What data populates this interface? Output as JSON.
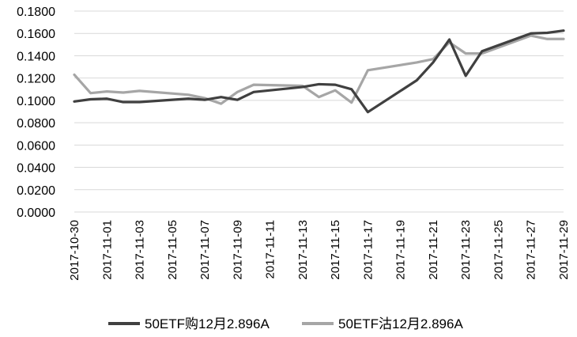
{
  "chart_data": {
    "type": "line",
    "title": "",
    "xlabel": "",
    "ylabel": "",
    "ylim": [
      0,
      0.18
    ],
    "y_ticks": [
      "0.0000",
      "0.0200",
      "0.0400",
      "0.0600",
      "0.0800",
      "0.1000",
      "0.1200",
      "0.1400",
      "0.1600",
      "0.1800"
    ],
    "x_tick_labels": [
      "2017-10-30",
      "2017-11-01",
      "2017-11-03",
      "2017-11-05",
      "2017-11-07",
      "2017-11-09",
      "2017-11-11",
      "2017-11-13",
      "2017-11-15",
      "2017-11-17",
      "2017-11-19",
      "2017-11-21",
      "2017-11-23",
      "2017-11-25",
      "2017-11-27",
      "2017-11-29"
    ],
    "x_range": [
      "2017-10-30",
      "2017-11-29"
    ],
    "grid": true,
    "legend_position": "bottom",
    "series": [
      {
        "name": "50ETF购12月2.896A",
        "color": "#404040",
        "points": [
          [
            "2017-10-30",
            0.099
          ],
          [
            "2017-10-31",
            0.101
          ],
          [
            "2017-11-01",
            0.1015
          ],
          [
            "2017-11-02",
            0.0985
          ],
          [
            "2017-11-03",
            0.0985
          ],
          [
            "2017-11-06",
            0.1015
          ],
          [
            "2017-11-07",
            0.1005
          ],
          [
            "2017-11-08",
            0.103
          ],
          [
            "2017-11-09",
            0.1005
          ],
          [
            "2017-11-10",
            0.1075
          ],
          [
            "2017-11-13",
            0.112
          ],
          [
            "2017-11-14",
            0.1145
          ],
          [
            "2017-11-15",
            0.114
          ],
          [
            "2017-11-16",
            0.11
          ],
          [
            "2017-11-17",
            0.0895
          ],
          [
            "2017-11-20",
            0.118
          ],
          [
            "2017-11-21",
            0.134
          ],
          [
            "2017-11-22",
            0.1545
          ],
          [
            "2017-11-23",
            0.122
          ],
          [
            "2017-11-24",
            0.144
          ],
          [
            "2017-11-27",
            0.16
          ],
          [
            "2017-11-28",
            0.1605
          ],
          [
            "2017-11-29",
            0.1625
          ]
        ]
      },
      {
        "name": "50ETF沽12月2.896A",
        "color": "#a6a6a6",
        "points": [
          [
            "2017-10-30",
            0.123
          ],
          [
            "2017-10-31",
            0.1065
          ],
          [
            "2017-11-01",
            0.108
          ],
          [
            "2017-11-02",
            0.107
          ],
          [
            "2017-11-03",
            0.1085
          ],
          [
            "2017-11-06",
            0.105
          ],
          [
            "2017-11-07",
            0.102
          ],
          [
            "2017-11-08",
            0.097
          ],
          [
            "2017-11-09",
            0.1075
          ],
          [
            "2017-11-10",
            0.114
          ],
          [
            "2017-11-13",
            0.113
          ],
          [
            "2017-11-14",
            0.103
          ],
          [
            "2017-11-15",
            0.109
          ],
          [
            "2017-11-16",
            0.098
          ],
          [
            "2017-11-17",
            0.127
          ],
          [
            "2017-11-20",
            0.134
          ],
          [
            "2017-11-21",
            0.137
          ],
          [
            "2017-11-22",
            0.152
          ],
          [
            "2017-11-23",
            0.142
          ],
          [
            "2017-11-24",
            0.142
          ],
          [
            "2017-11-27",
            0.158
          ],
          [
            "2017-11-28",
            0.155
          ],
          [
            "2017-11-29",
            0.155
          ]
        ]
      }
    ]
  }
}
